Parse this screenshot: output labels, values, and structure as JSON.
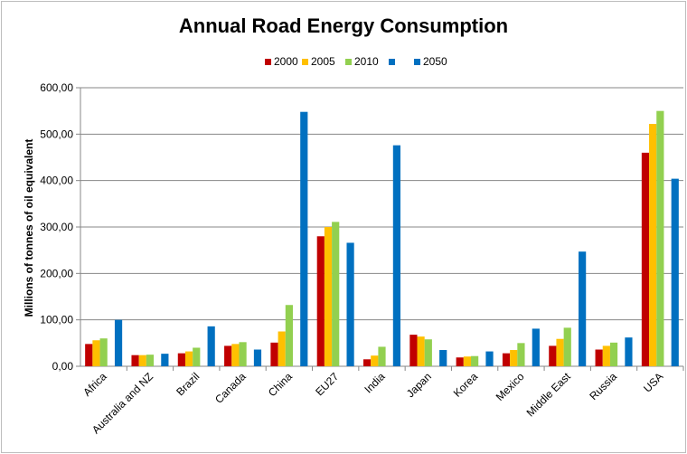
{
  "chart_data": {
    "type": "bar",
    "title": "Annual Road Energy Consumption",
    "ylabel": "Millions of tonnes of oil equivalent",
    "xlabel": "",
    "ylim": [
      0,
      600
    ],
    "yticks": [
      "0,00",
      "100,00",
      "200,00",
      "300,00",
      "400,00",
      "500,00",
      "600,00"
    ],
    "grid": true,
    "legend_position": "top",
    "categories": [
      "Africa",
      "Australia and NZ",
      "Brazil",
      "Canada",
      "China",
      "EU27",
      "India",
      "Japan",
      "Korea",
      "Mexico",
      "Middle East",
      "Russia",
      "USA"
    ],
    "series": [
      {
        "name": "2000",
        "color": "#c00000",
        "values": [
          48,
          24,
          28,
          44,
          51,
          280,
          15,
          68,
          19,
          28,
          44,
          36,
          460
        ]
      },
      {
        "name": "2005",
        "color": "#ffc000",
        "values": [
          56,
          24,
          32,
          48,
          75,
          300,
          23,
          64,
          21,
          35,
          59,
          44,
          522
        ]
      },
      {
        "name": "2010",
        "color": "#92d050",
        "values": [
          60,
          25,
          40,
          52,
          132,
          311,
          42,
          58,
          22,
          50,
          83,
          51,
          550
        ]
      },
      {
        "name": "",
        "color": "#0070c0",
        "values": [
          0,
          0,
          0,
          0,
          0,
          0,
          0,
          0,
          0,
          0,
          0,
          0,
          0
        ]
      },
      {
        "name": "2050",
        "color": "#0070c0",
        "values": [
          100,
          27,
          86,
          36,
          548,
          266,
          476,
          35,
          32,
          81,
          247,
          62,
          404
        ]
      }
    ]
  }
}
